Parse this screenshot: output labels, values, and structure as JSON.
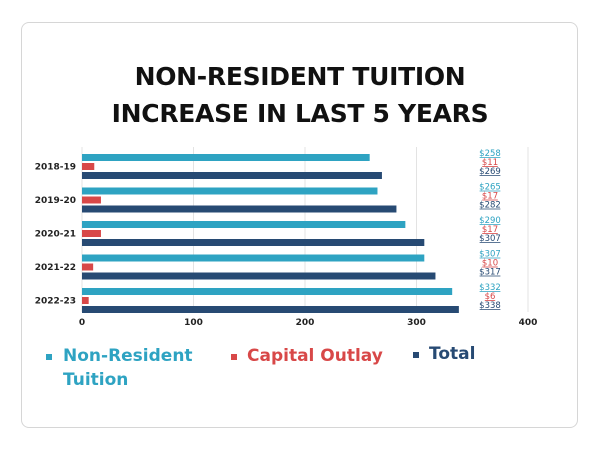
{
  "chart_data": {
    "type": "bar",
    "orientation": "horizontal",
    "title_lines": [
      "NON-RESIDENT TUITION",
      "INCREASE IN LAST 5 YEARS"
    ],
    "categories": [
      "2018-19",
      "2019-20",
      "2020-21",
      "2021-22",
      "2022-23"
    ],
    "series": [
      {
        "name": "Non-Resident Tuition",
        "color": "#2ea3c2",
        "values": [
          258,
          265,
          290,
          307,
          332
        ],
        "labels": [
          "$258",
          "$265",
          "$290",
          "$307",
          "$332"
        ]
      },
      {
        "name": "Capital Outlay",
        "color": "#d84848",
        "values": [
          11,
          17,
          17,
          10,
          6
        ],
        "labels": [
          "$11",
          "$17",
          "$17",
          "$10",
          "$6"
        ]
      },
      {
        "name": "Total",
        "color": "#274a73",
        "values": [
          269,
          282,
          307,
          317,
          338
        ],
        "labels": [
          "$269",
          "$282",
          "$307",
          "$317",
          "$338"
        ]
      }
    ],
    "xlim": [
      0,
      400
    ],
    "xticks": [
      "0",
      "100",
      "200",
      "300",
      "400"
    ],
    "grid": true,
    "legend_position": "bottom"
  }
}
